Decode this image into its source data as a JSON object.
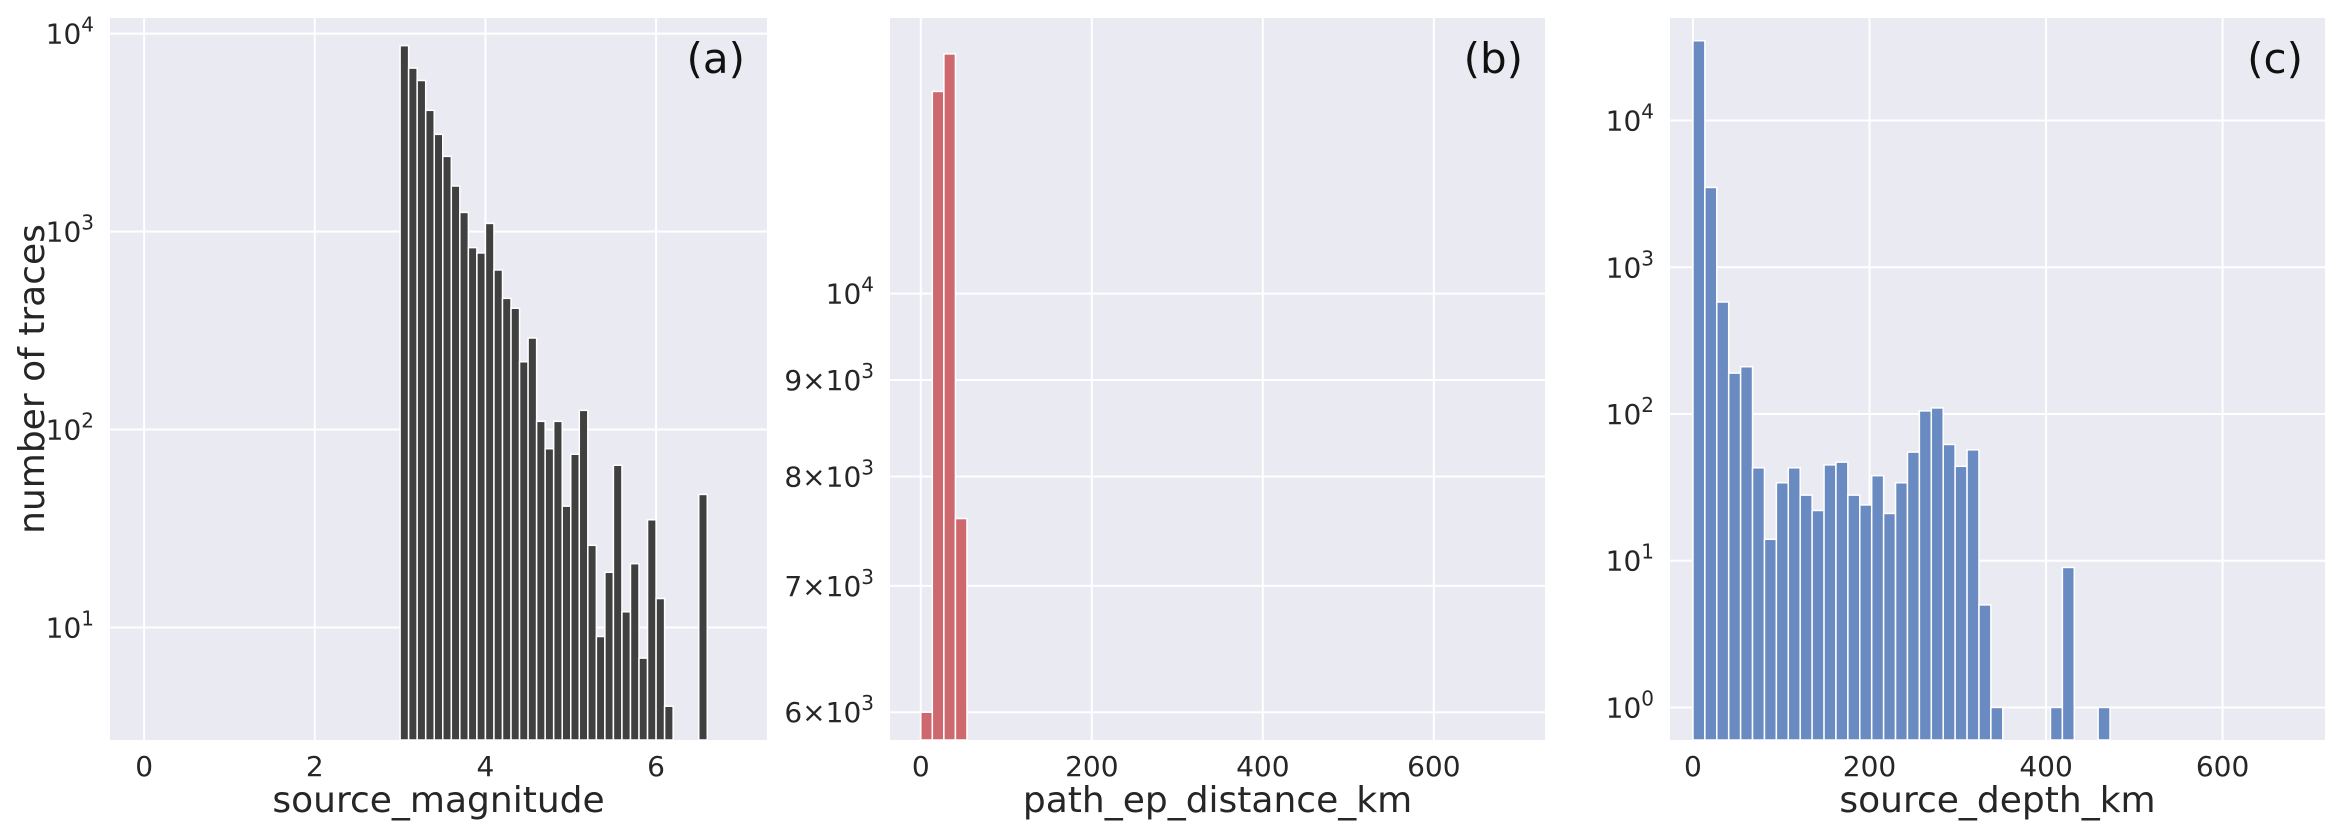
{
  "chart_data": [
    {
      "type": "bar",
      "panel_label": "(a)",
      "xlabel": "source_magnitude",
      "ylabel": "number of traces",
      "yscale": "log",
      "xlim": [
        -0.4,
        7.3
      ],
      "ylim": [
        2.7,
        12000
      ],
      "xticks": [
        0,
        2,
        4,
        6
      ],
      "xtick_labels": [
        "0",
        "2",
        "4",
        "6"
      ],
      "yticks": [
        10,
        100,
        1000,
        10000
      ],
      "ytick_labels": [
        {
          "base": "10",
          "exp": "1"
        },
        {
          "base": "10",
          "exp": "2"
        },
        {
          "base": "10",
          "exp": "3"
        },
        {
          "base": "10",
          "exp": "4"
        }
      ],
      "bin_width": 0.1,
      "color": "#404040",
      "grid": true,
      "bins": [
        {
          "x": 3.0,
          "value": 8700
        },
        {
          "x": 3.1,
          "value": 6700
        },
        {
          "x": 3.2,
          "value": 5800
        },
        {
          "x": 3.3,
          "value": 4100
        },
        {
          "x": 3.4,
          "value": 3100
        },
        {
          "x": 3.5,
          "value": 2400
        },
        {
          "x": 3.6,
          "value": 1700
        },
        {
          "x": 3.7,
          "value": 1250
        },
        {
          "x": 3.8,
          "value": 830
        },
        {
          "x": 3.9,
          "value": 780
        },
        {
          "x": 4.0,
          "value": 1100
        },
        {
          "x": 4.1,
          "value": 640
        },
        {
          "x": 4.2,
          "value": 460
        },
        {
          "x": 4.3,
          "value": 410
        },
        {
          "x": 4.4,
          "value": 220
        },
        {
          "x": 4.5,
          "value": 290
        },
        {
          "x": 4.6,
          "value": 110
        },
        {
          "x": 4.7,
          "value": 80
        },
        {
          "x": 4.8,
          "value": 110
        },
        {
          "x": 4.9,
          "value": 41
        },
        {
          "x": 5.0,
          "value": 75
        },
        {
          "x": 5.1,
          "value": 125
        },
        {
          "x": 5.2,
          "value": 26
        },
        {
          "x": 5.3,
          "value": 9
        },
        {
          "x": 5.4,
          "value": 19
        },
        {
          "x": 5.5,
          "value": 66
        },
        {
          "x": 5.6,
          "value": 12
        },
        {
          "x": 5.7,
          "value": 21
        },
        {
          "x": 5.8,
          "value": 7
        },
        {
          "x": 5.9,
          "value": 35
        },
        {
          "x": 6.0,
          "value": 14
        },
        {
          "x": 6.1,
          "value": 4
        },
        {
          "x": 6.5,
          "value": 47
        }
      ]
    },
    {
      "type": "bar",
      "panel_label": "(b)",
      "xlabel": "path_ep_distance_km",
      "ylabel": "",
      "yscale": "log",
      "xlim": [
        -36,
        730
      ],
      "ylim": [
        5800,
        14000
      ],
      "xticks": [
        0,
        200,
        400,
        600
      ],
      "xtick_labels": [
        "0",
        "200",
        "400",
        "600"
      ],
      "yticks": [
        6000,
        7000,
        8000,
        9000,
        10000
      ],
      "ytick_labels": [
        {
          "base": "6×10",
          "exp": "3"
        },
        {
          "base": "7×10",
          "exp": "3"
        },
        {
          "base": "8×10",
          "exp": "3"
        },
        {
          "base": "9×10",
          "exp": "3"
        },
        {
          "base": "10",
          "exp": "4"
        }
      ],
      "bin_width": 13.5,
      "color": "#cd686f",
      "grid": true,
      "bins": [
        {
          "x": 0,
          "value": 6000
        },
        {
          "x": 13.5,
          "value": 12800
        },
        {
          "x": 27,
          "value": 13400
        },
        {
          "x": 40.5,
          "value": 7600
        }
      ]
    },
    {
      "type": "bar",
      "panel_label": "(c)",
      "xlabel": "source_depth_km",
      "ylabel": "",
      "yscale": "log",
      "xlim": [
        -26,
        716
      ],
      "ylim": [
        0.6,
        50000
      ],
      "xticks": [
        0,
        200,
        400,
        600
      ],
      "xtick_labels": [
        "0",
        "200",
        "400",
        "600"
      ],
      "yticks": [
        1,
        10,
        100,
        1000,
        10000
      ],
      "ytick_labels": [
        {
          "base": "10",
          "exp": "0"
        },
        {
          "base": "10",
          "exp": "1"
        },
        {
          "base": "10",
          "exp": "2"
        },
        {
          "base": "10",
          "exp": "3"
        },
        {
          "base": "10",
          "exp": "4"
        }
      ],
      "bin_width": 13.5,
      "color": "#6a8bc1",
      "grid": true,
      "bins": [
        {
          "x": 0,
          "value": 35000
        },
        {
          "x": 13.5,
          "value": 3500
        },
        {
          "x": 27,
          "value": 580
        },
        {
          "x": 40.5,
          "value": 190
        },
        {
          "x": 54,
          "value": 210
        },
        {
          "x": 67.5,
          "value": 43
        },
        {
          "x": 81,
          "value": 14
        },
        {
          "x": 94.5,
          "value": 34
        },
        {
          "x": 108,
          "value": 43
        },
        {
          "x": 121.5,
          "value": 28
        },
        {
          "x": 135,
          "value": 22
        },
        {
          "x": 148.5,
          "value": 45
        },
        {
          "x": 162,
          "value": 47
        },
        {
          "x": 175.5,
          "value": 28
        },
        {
          "x": 189,
          "value": 24
        },
        {
          "x": 202.5,
          "value": 38
        },
        {
          "x": 216,
          "value": 21
        },
        {
          "x": 229.5,
          "value": 34
        },
        {
          "x": 243,
          "value": 55
        },
        {
          "x": 256.5,
          "value": 105
        },
        {
          "x": 270,
          "value": 110
        },
        {
          "x": 283.5,
          "value": 62
        },
        {
          "x": 297,
          "value": 44
        },
        {
          "x": 310.5,
          "value": 57
        },
        {
          "x": 324,
          "value": 5
        },
        {
          "x": 337.5,
          "value": 1
        },
        {
          "x": 405,
          "value": 1
        },
        {
          "x": 418.5,
          "value": 9
        },
        {
          "x": 459,
          "value": 1
        }
      ]
    }
  ]
}
